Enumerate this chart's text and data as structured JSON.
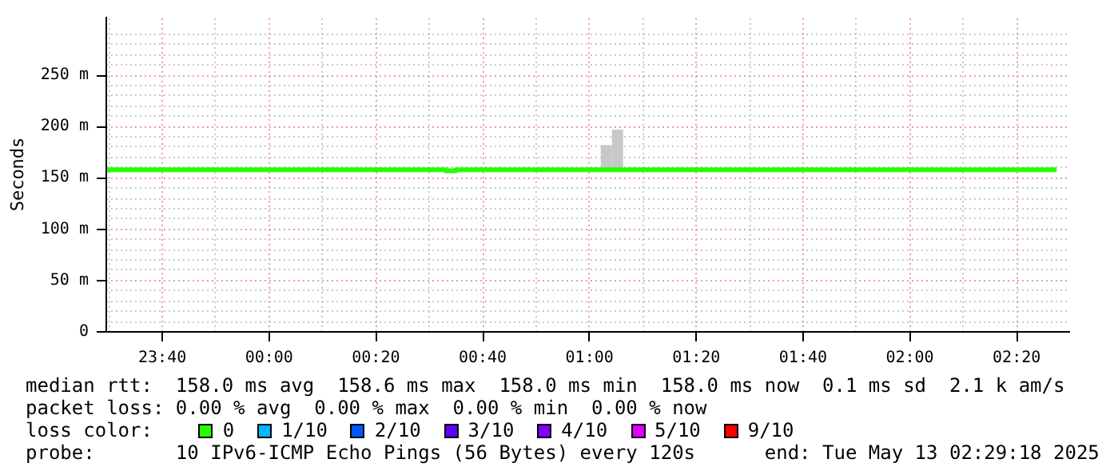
{
  "chart_data": {
    "type": "step",
    "ylabel": "Seconds",
    "legend_title": "loss color:",
    "legend": "bottom",
    "grid": true,
    "line_style": "solid",
    "xlim": [
      "2025-05-12T23:29:30",
      "2025-05-13T02:30:00"
    ],
    "ylim": [
      0,
      307
    ],
    "xticks": [
      {
        "value": "2025-05-12T23:40",
        "label": "23:40"
      },
      {
        "value": "2025-05-13T00:00",
        "label": "00:00"
      },
      {
        "value": "2025-05-13T00:20",
        "label": "00:20"
      },
      {
        "value": "2025-05-13T00:40",
        "label": "00:40"
      },
      {
        "value": "2025-05-13T01:00",
        "label": "01:00"
      },
      {
        "value": "2025-05-13T01:20",
        "label": "01:20"
      },
      {
        "value": "2025-05-13T01:40",
        "label": "01:40"
      },
      {
        "value": "2025-05-13T02:00",
        "label": "02:00"
      },
      {
        "value": "2025-05-13T02:20",
        "label": "02:20"
      }
    ],
    "yticks": [
      0,
      {
        "value": 50,
        "label": "50 m"
      },
      {
        "value": 100,
        "label": "100 m"
      },
      {
        "value": 150,
        "label": "150 m"
      },
      {
        "value": 200,
        "label": "200 m"
      },
      {
        "value": 250,
        "label": "250 m"
      }
    ],
    "series": [
      {
        "type": "bar",
        "color": "#c8c8c8",
        "x": [
          "2025-05-13T01:03:10",
          "2025-05-13T01:05:15"
        ],
        "base": [
          158,
          158
        ],
        "values": [
          24,
          39
        ]
      },
      {
        "name": "0",
        "color": "#26ff00",
        "x": [
          "2025-05-12T23:29:30",
          "2025-05-13T00:33:00",
          "2025-05-13T00:35:00",
          "2025-05-13T02:27:30"
        ],
        "values": [
          158,
          157,
          158,
          158
        ]
      },
      {
        "name": "1/10",
        "color": "#00b8ff"
      },
      {
        "name": "2/10",
        "color": "#0059ff"
      },
      {
        "name": "3/10",
        "color": "#5e00ff"
      },
      {
        "name": "4/10",
        "color": "#7e00ff"
      },
      {
        "name": "5/10",
        "color": "#dd00ff"
      },
      {
        "name": "9/10",
        "color": "#ff0000"
      }
    ],
    "annotations": [
      "median rtt:  158.0 ms avg  158.6 ms max  158.0 ms min  158.0 ms now  0.1 ms sd  2.1 k am/s",
      "packet loss: 0.00 % avg  0.00 % max  0.00 % min  0.00 % now",
      "probe:       10 IPv6-ICMP Echo Pings (56 Bytes) every 120s",
      "end: Tue May 13 02:29:18 2025"
    ]
  }
}
